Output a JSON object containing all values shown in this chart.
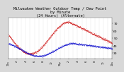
{
  "title": "Milwaukee Weather Outdoor Temp / Dew Point\nby Minute\n(24 Hours) (Alternate)",
  "title_fontsize": 3.8,
  "bg_color": "#d8d8d8",
  "plot_bg_color": "#ffffff",
  "temp_color": "#cc0000",
  "dew_color": "#0000cc",
  "ylim": [
    22,
    78
  ],
  "yticks": [
    30,
    40,
    50,
    60,
    70
  ],
  "ylabel_fontsize": 3.2,
  "xlabel_fontsize": 2.5,
  "grid_color": "#999999",
  "num_minutes": 1440,
  "temp_peak_hour": 14,
  "temp_min": 29,
  "temp_max": 72,
  "dew_min": 26,
  "dew_max": 43,
  "dew_peak_hour": 15
}
